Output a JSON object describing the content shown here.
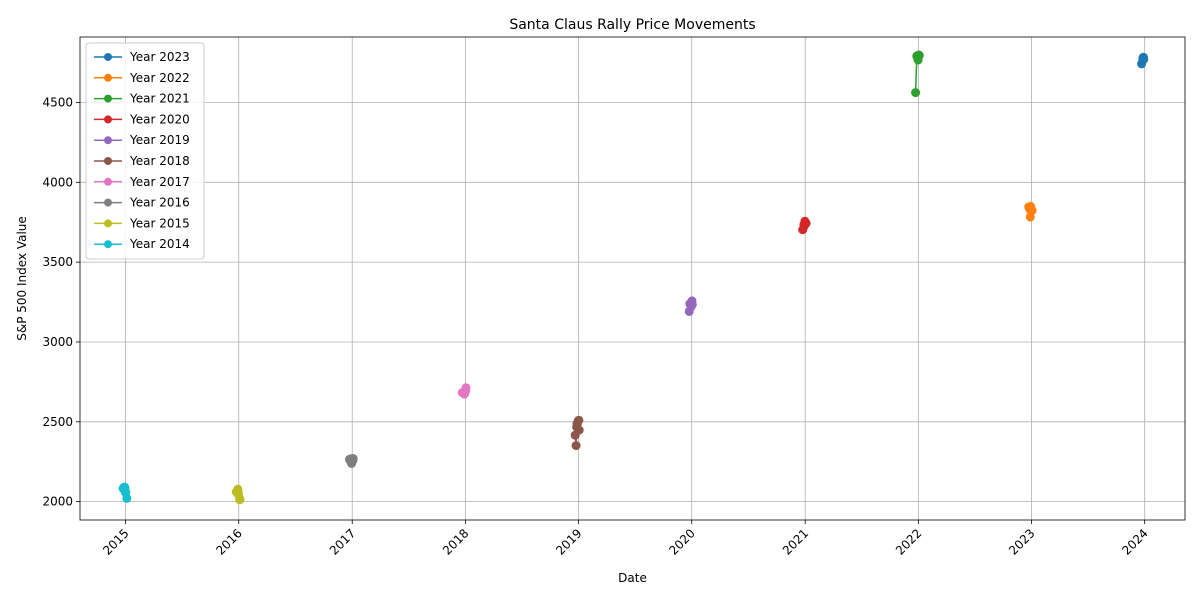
{
  "chart_data": {
    "type": "line",
    "title": "Santa Claus Rally Price Movements",
    "xlabel": "Date",
    "ylabel": "S&P 500 Index Value",
    "grid": true,
    "legend_position": "top-left",
    "xlim": [
      "2014-08-07",
      "2024-05-10"
    ],
    "ylim": [
      1885,
      4910
    ],
    "x_ticks": [
      "2015",
      "2016",
      "2017",
      "2018",
      "2019",
      "2020",
      "2021",
      "2022",
      "2023",
      "2024"
    ],
    "y_ticks": [
      2000,
      2500,
      3000,
      3500,
      4000,
      4500
    ],
    "series": [
      {
        "name": "Year 2023",
        "color": "#1f77b4",
        "points": [
          [
            "2023-12-22",
            4742
          ],
          [
            "2023-12-26",
            4774
          ],
          [
            "2023-12-27",
            4781
          ],
          [
            "2023-12-28",
            4783
          ],
          [
            "2023-12-29",
            4770
          ]
        ]
      },
      {
        "name": "Year 2022",
        "color": "#ff7f0e",
        "points": [
          [
            "2022-12-23",
            3845
          ],
          [
            "2022-12-27",
            3829
          ],
          [
            "2022-12-28",
            3783
          ],
          [
            "2022-12-29",
            3849
          ],
          [
            "2022-12-30",
            3839
          ],
          [
            "2023-01-03",
            3824
          ]
        ]
      },
      {
        "name": "Year 2021",
        "color": "#2ca02c",
        "points": [
          [
            "2021-12-23",
            4562
          ],
          [
            "2021-12-27",
            4791
          ],
          [
            "2021-12-28",
            4786
          ],
          [
            "2021-12-29",
            4793
          ],
          [
            "2021-12-30",
            4778
          ],
          [
            "2021-12-31",
            4766
          ],
          [
            "2022-01-03",
            4797
          ],
          [
            "2022-01-04",
            4794
          ]
        ]
      },
      {
        "name": "Year 2020",
        "color": "#d62728",
        "points": [
          [
            "2020-12-24",
            3703
          ],
          [
            "2020-12-28",
            3735
          ],
          [
            "2020-12-29",
            3727
          ],
          [
            "2020-12-30",
            3732
          ],
          [
            "2020-12-31",
            3756
          ],
          [
            "2021-01-04",
            3743
          ]
        ]
      },
      {
        "name": "Year 2019",
        "color": "#9467bd",
        "points": [
          [
            "2019-12-24",
            3191
          ],
          [
            "2019-12-26",
            3240
          ],
          [
            "2019-12-27",
            3240
          ],
          [
            "2019-12-30",
            3221
          ],
          [
            "2019-12-31",
            3231
          ],
          [
            "2020-01-02",
            3257
          ],
          [
            "2020-01-03",
            3235
          ]
        ]
      },
      {
        "name": "Year 2018",
        "color": "#8c564b",
        "points": [
          [
            "2018-12-21",
            2416
          ],
          [
            "2018-12-24",
            2351
          ],
          [
            "2018-12-26",
            2467
          ],
          [
            "2018-12-27",
            2488
          ],
          [
            "2018-12-28",
            2486
          ],
          [
            "2018-12-31",
            2507
          ],
          [
            "2019-01-02",
            2510
          ],
          [
            "2019-01-03",
            2448
          ]
        ]
      },
      {
        "name": "Year 2017",
        "color": "#e377c2",
        "points": [
          [
            "2017-12-22",
            2683
          ],
          [
            "2017-12-26",
            2680
          ],
          [
            "2017-12-27",
            2682
          ],
          [
            "2017-12-28",
            2688
          ],
          [
            "2017-12-29",
            2674
          ],
          [
            "2018-01-02",
            2695
          ],
          [
            "2018-01-03",
            2713
          ]
        ]
      },
      {
        "name": "Year 2016",
        "color": "#7f7f7f",
        "points": [
          [
            "2016-12-23",
            2264
          ],
          [
            "2016-12-27",
            2268
          ],
          [
            "2016-12-28",
            2250
          ],
          [
            "2016-12-29",
            2249
          ],
          [
            "2016-12-30",
            2239
          ],
          [
            "2017-01-03",
            2257
          ],
          [
            "2017-01-04",
            2270
          ]
        ]
      },
      {
        "name": "Year 2015",
        "color": "#bcbd22",
        "points": [
          [
            "2015-12-24",
            2061
          ],
          [
            "2015-12-28",
            2057
          ],
          [
            "2015-12-29",
            2078
          ],
          [
            "2015-12-30",
            2063
          ],
          [
            "2015-12-31",
            2044
          ],
          [
            "2016-01-04",
            2012
          ],
          [
            "2016-01-05",
            2016
          ]
        ]
      },
      {
        "name": "Year 2014",
        "color": "#17becf",
        "points": [
          [
            "2014-12-24",
            2082
          ],
          [
            "2014-12-26",
            2089
          ],
          [
            "2014-12-29",
            2091
          ],
          [
            "2014-12-30",
            2080
          ],
          [
            "2014-12-31",
            2059
          ],
          [
            "2015-01-02",
            2058
          ],
          [
            "2015-01-05",
            2021
          ]
        ]
      }
    ]
  }
}
